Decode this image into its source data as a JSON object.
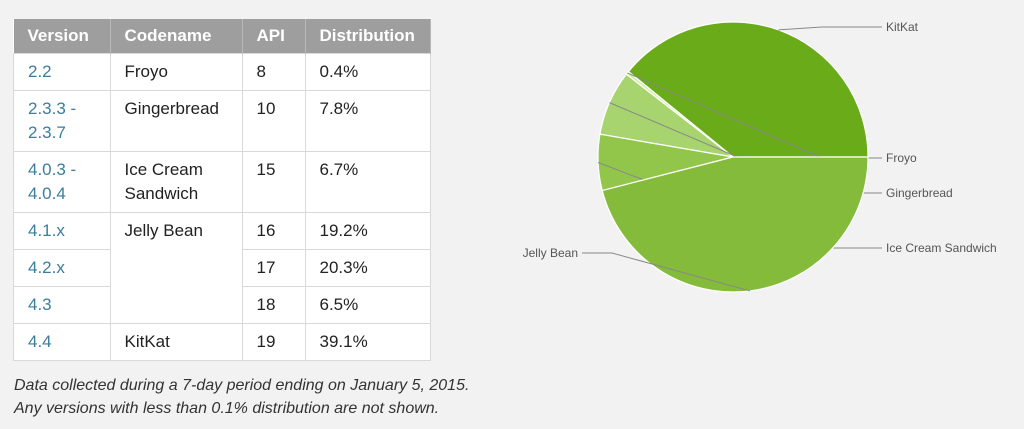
{
  "table": {
    "headers": [
      "Version",
      "Codename",
      "API",
      "Distribution"
    ],
    "rows": [
      {
        "version": "2.2",
        "codename": "Froyo",
        "api": "8",
        "distribution": "0.4%"
      },
      {
        "version": "2.3.3 -\n2.3.7",
        "codename": "Gingerbread",
        "api": "10",
        "distribution": "7.8%"
      },
      {
        "version": "4.0.3 -\n4.0.4",
        "codename": "Ice Cream\nSandwich",
        "api": "15",
        "distribution": "6.7%"
      },
      {
        "version": "4.1.x",
        "codename": "Jelly Bean",
        "api": "16",
        "distribution": "19.2%"
      },
      {
        "version": "4.2.x",
        "codename": "",
        "api": "17",
        "distribution": "20.3%"
      },
      {
        "version": "4.3",
        "codename": "",
        "api": "18",
        "distribution": "6.5%"
      },
      {
        "version": "4.4",
        "codename": "KitKat",
        "api": "19",
        "distribution": "39.1%"
      }
    ]
  },
  "footnote": {
    "line1": "Data collected during a 7-day period ending on January 5, 2015.",
    "line2": "Any versions with less than 0.1% distribution are not shown."
  },
  "chart_data": {
    "type": "pie",
    "title": "",
    "slices": [
      {
        "label": "KitKat",
        "value": 39.1,
        "color": "#6aab1a"
      },
      {
        "label": "Froyo",
        "value": 0.4,
        "color": "#d4ecb0"
      },
      {
        "label": "Gingerbread",
        "value": 7.8,
        "color": "#a8d46f"
      },
      {
        "label": "Ice Cream Sandwich",
        "value": 6.7,
        "color": "#92c64a"
      },
      {
        "label": "Jelly Bean",
        "value": 46.0,
        "color": "#84bb3a"
      }
    ],
    "label_side": {
      "KitKat": "right",
      "Froyo": "right",
      "Gingerbread": "right",
      "Ice Cream Sandwich": "right",
      "Jelly Bean": "left"
    },
    "legend": "none"
  }
}
